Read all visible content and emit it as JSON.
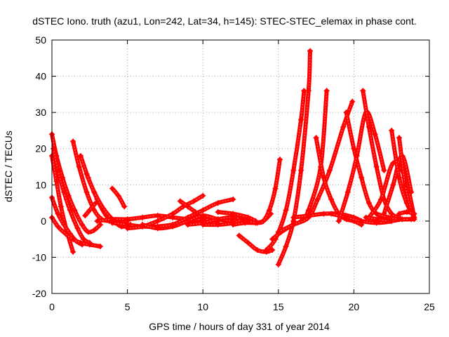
{
  "chart_data": {
    "type": "scatter",
    "title": "dSTEC Iono. truth (azu1, Lon=242, Lat=34, h=145): STEC-STEC_elemax in phase cont.",
    "xlabel": "GPS time / hours of day 331 of year 2014",
    "ylabel": "dSTEC  / TECUs",
    "xlim": [
      0,
      25
    ],
    "ylim": [
      -20,
      50
    ],
    "xticks": [
      0,
      5,
      10,
      15,
      20,
      25
    ],
    "yticks": [
      -20,
      -10,
      0,
      10,
      20,
      30,
      40,
      50
    ],
    "grid": true,
    "marker": "+",
    "color": "#ff0000",
    "series": [
      {
        "x": [
          0.0,
          0.3,
          0.7,
          1.1,
          1.5,
          2.0,
          2.4,
          2.8,
          3.2
        ],
        "y": [
          24.0,
          18.0,
          12.0,
          7.0,
          3.0,
          -1.0,
          -3.0,
          -2.5,
          -1.0
        ]
      },
      {
        "x": [
          0.1,
          0.4,
          0.8,
          1.2,
          1.7,
          2.1,
          2.5
        ],
        "y": [
          20.0,
          14.0,
          8.0,
          3.0,
          -2.0,
          -5.0,
          -6.0
        ]
      },
      {
        "x": [
          0.0,
          0.3,
          0.6,
          1.0,
          1.4
        ],
        "y": [
          18.0,
          11.0,
          4.0,
          -3.0,
          -8.5
        ]
      },
      {
        "x": [
          0.0,
          0.4,
          0.8,
          1.2,
          1.6,
          2.0
        ],
        "y": [
          6.5,
          2.0,
          -1.0,
          -3.5,
          -5.5,
          -6.5
        ]
      },
      {
        "x": [
          0.0,
          0.4,
          0.9,
          1.4,
          1.9,
          2.5,
          3.2
        ],
        "y": [
          1.0,
          -1.5,
          -3.5,
          -5.0,
          -6.0,
          -6.5,
          -7.0
        ]
      },
      {
        "x": [
          1.4,
          1.8,
          2.3,
          2.8,
          3.3,
          3.8
        ],
        "y": [
          22.0,
          15.0,
          8.0,
          3.0,
          0.5,
          0.0
        ]
      },
      {
        "x": [
          1.9,
          2.4,
          3.0,
          3.6,
          4.3,
          5.0
        ],
        "y": [
          18.0,
          12.0,
          6.0,
          1.5,
          -0.5,
          0.0
        ]
      },
      {
        "x": [
          2.3,
          2.8,
          3.4,
          4.0,
          4.6,
          5.2
        ],
        "y": [
          13.0,
          8.0,
          3.5,
          0.5,
          -1.5,
          -1.0
        ]
      },
      {
        "x": [
          2.2,
          2.5,
          2.9
        ],
        "y": [
          1.5,
          3.0,
          5.0
        ]
      },
      {
        "x": [
          3.0,
          4.0,
          5.0,
          6.0,
          7.0,
          8.0,
          9.0,
          10.0
        ],
        "y": [
          0.0,
          0.5,
          0.5,
          1.0,
          1.5,
          1.0,
          0.5,
          0.0
        ]
      },
      {
        "x": [
          4.0,
          5.0,
          6.0,
          7.0,
          8.0,
          9.0,
          10.0,
          11.0
        ],
        "y": [
          -0.5,
          -1.0,
          -1.5,
          -1.5,
          -1.0,
          0.0,
          0.5,
          0.0
        ]
      },
      {
        "x": [
          4.0,
          4.4,
          4.8
        ],
        "y": [
          9.0,
          7.0,
          4.0
        ]
      },
      {
        "x": [
          5.0,
          6.0,
          7.0,
          8.0,
          8.7,
          9.4,
          10.0
        ],
        "y": [
          -2.0,
          -1.5,
          0.0,
          2.0,
          4.0,
          5.5,
          7.0
        ]
      },
      {
        "x": [
          6.0,
          7.0,
          8.0,
          9.0,
          10.0,
          11.0,
          12.0
        ],
        "y": [
          -1.0,
          -2.0,
          -1.5,
          0.0,
          1.5,
          0.5,
          0.0
        ]
      },
      {
        "x": [
          7.0,
          8.0,
          9.0,
          10.0,
          11.0,
          12.0
        ],
        "y": [
          -1.5,
          -1.0,
          1.0,
          3.0,
          5.0,
          6.0
        ]
      },
      {
        "x": [
          8.5,
          9.0,
          9.5
        ],
        "y": [
          5.5,
          4.0,
          2.5
        ]
      },
      {
        "x": [
          9.0,
          10.0,
          11.0,
          12.0,
          13.0,
          13.5
        ],
        "y": [
          -1.0,
          -0.5,
          0.5,
          1.0,
          0.0,
          -0.5
        ]
      },
      {
        "x": [
          10.0,
          11.0,
          12.0,
          12.6
        ],
        "y": [
          -1.0,
          -1.0,
          -0.5,
          0.5
        ]
      },
      {
        "x": [
          11.0,
          12.0,
          13.0,
          13.5
        ],
        "y": [
          2.5,
          2.0,
          1.0,
          0.0
        ]
      },
      {
        "x": [
          12.0,
          12.8,
          13.5,
          14.0,
          14.5
        ],
        "y": [
          -1.0,
          -0.5,
          -0.5,
          0.0,
          2.0
        ]
      },
      {
        "x": [
          13.0,
          13.6,
          14.0,
          14.4,
          14.8,
          15.1
        ],
        "y": [
          0.0,
          -0.5,
          0.0,
          3.0,
          9.0,
          17.0
        ]
      },
      {
        "x": [
          12.4,
          13.0,
          13.6,
          14.2,
          14.6
        ],
        "y": [
          -4.0,
          -6.0,
          -8.0,
          -8.5,
          -8.0
        ]
      },
      {
        "x": [
          15.0,
          15.5,
          16.0,
          16.5,
          17.0,
          17.1
        ],
        "y": [
          -12.0,
          -7.0,
          0.0,
          14.0,
          36.0,
          47.0
        ]
      },
      {
        "x": [
          14.2,
          14.8,
          15.5,
          16.0,
          16.5,
          16.7
        ],
        "y": [
          -8.0,
          -5.0,
          3.0,
          14.0,
          28.0,
          36.0
        ]
      },
      {
        "x": [
          14.6,
          15.2,
          16.0,
          16.5,
          17.0,
          17.8,
          18.2
        ],
        "y": [
          -5.0,
          -3.0,
          -1.0,
          0.0,
          3.0,
          15.0,
          36.0
        ]
      },
      {
        "x": [
          15.0,
          16.0,
          17.0,
          17.6,
          18.4,
          19.3,
          19.9
        ],
        "y": [
          -3.0,
          -1.0,
          1.0,
          6.0,
          14.0,
          26.0,
          33.0
        ]
      },
      {
        "x": [
          17.5,
          18.0,
          18.5,
          19.0,
          19.5,
          20.0,
          20.5
        ],
        "y": [
          23.0,
          12.0,
          6.0,
          2.0,
          0.5,
          0.0,
          -1.0
        ]
      },
      {
        "x": [
          16.0,
          17.0,
          18.0,
          19.0,
          20.0,
          20.5
        ],
        "y": [
          1.0,
          1.5,
          2.0,
          2.0,
          1.0,
          0.0
        ]
      },
      {
        "x": [
          18.5,
          19.5,
          20.5,
          21.5,
          22.5,
          23.0
        ],
        "y": [
          2.0,
          1.0,
          0.0,
          -0.5,
          0.0,
          1.0
        ]
      },
      {
        "x": [
          19.5,
          20.0,
          20.5,
          21.0,
          21.5,
          22.0
        ],
        "y": [
          30.0,
          20.0,
          12.0,
          5.0,
          2.0,
          1.0
        ]
      },
      {
        "x": [
          19.0,
          19.6,
          20.2,
          20.8,
          21.4,
          22.0
        ],
        "y": [
          0.0,
          8.0,
          18.0,
          30.0,
          24.0,
          14.0
        ]
      },
      {
        "x": [
          20.6,
          21.0,
          21.5,
          22.0,
          22.5,
          23.0
        ],
        "y": [
          36.0,
          26.0,
          15.0,
          6.0,
          2.0,
          1.0
        ]
      },
      {
        "x": [
          21.0,
          21.8,
          22.6,
          23.4,
          24.0
        ],
        "y": [
          1.0,
          6.0,
          16.0,
          12.0,
          1.0
        ]
      },
      {
        "x": [
          22.0,
          22.6,
          23.2,
          23.8
        ],
        "y": [
          2.0,
          10.0,
          18.0,
          8.0
        ]
      },
      {
        "x": [
          22.5,
          23.0,
          23.5,
          24.0
        ],
        "y": [
          25.0,
          12.0,
          5.0,
          1.0
        ]
      },
      {
        "x": [
          23.0,
          23.4,
          23.8,
          24.0
        ],
        "y": [
          23.0,
          10.0,
          3.0,
          1.0
        ]
      },
      {
        "x": [
          20.8,
          21.6,
          22.4,
          23.2,
          24.0
        ],
        "y": [
          1.0,
          0.5,
          0.0,
          0.5,
          0.5
        ]
      },
      {
        "x": [
          21.5,
          22.3,
          23.0,
          23.8
        ],
        "y": [
          2.0,
          1.0,
          0.5,
          0.5
        ]
      },
      {
        "x": [
          23.0,
          23.5,
          24.0
        ],
        "y": [
          2.0,
          2.5,
          2.0
        ]
      }
    ]
  }
}
